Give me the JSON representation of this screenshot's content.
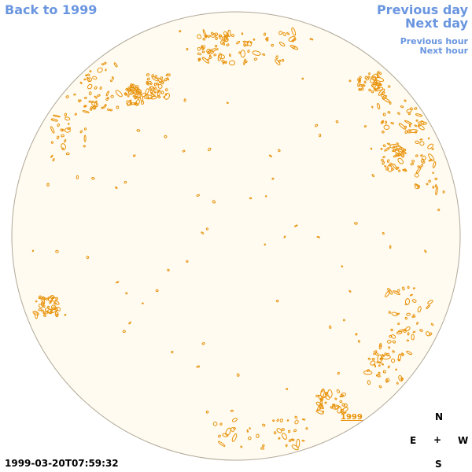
{
  "nav": {
    "back": "Back to 1999",
    "previous_day": "Previous day",
    "next_day": "Next day",
    "previous_hour": "Previous hour",
    "next_hour": "Next hour"
  },
  "timestamp": "1999-03-20T07:59:32",
  "year_label": "1999",
  "compass": {
    "north": "N",
    "east": "E",
    "center": "+",
    "west": "W",
    "south": "S"
  },
  "colors": {
    "link": "#6a96e0",
    "disk_fill": "#fffbf0",
    "disk_edge": "#b0a898",
    "feature": "#e8920a"
  }
}
